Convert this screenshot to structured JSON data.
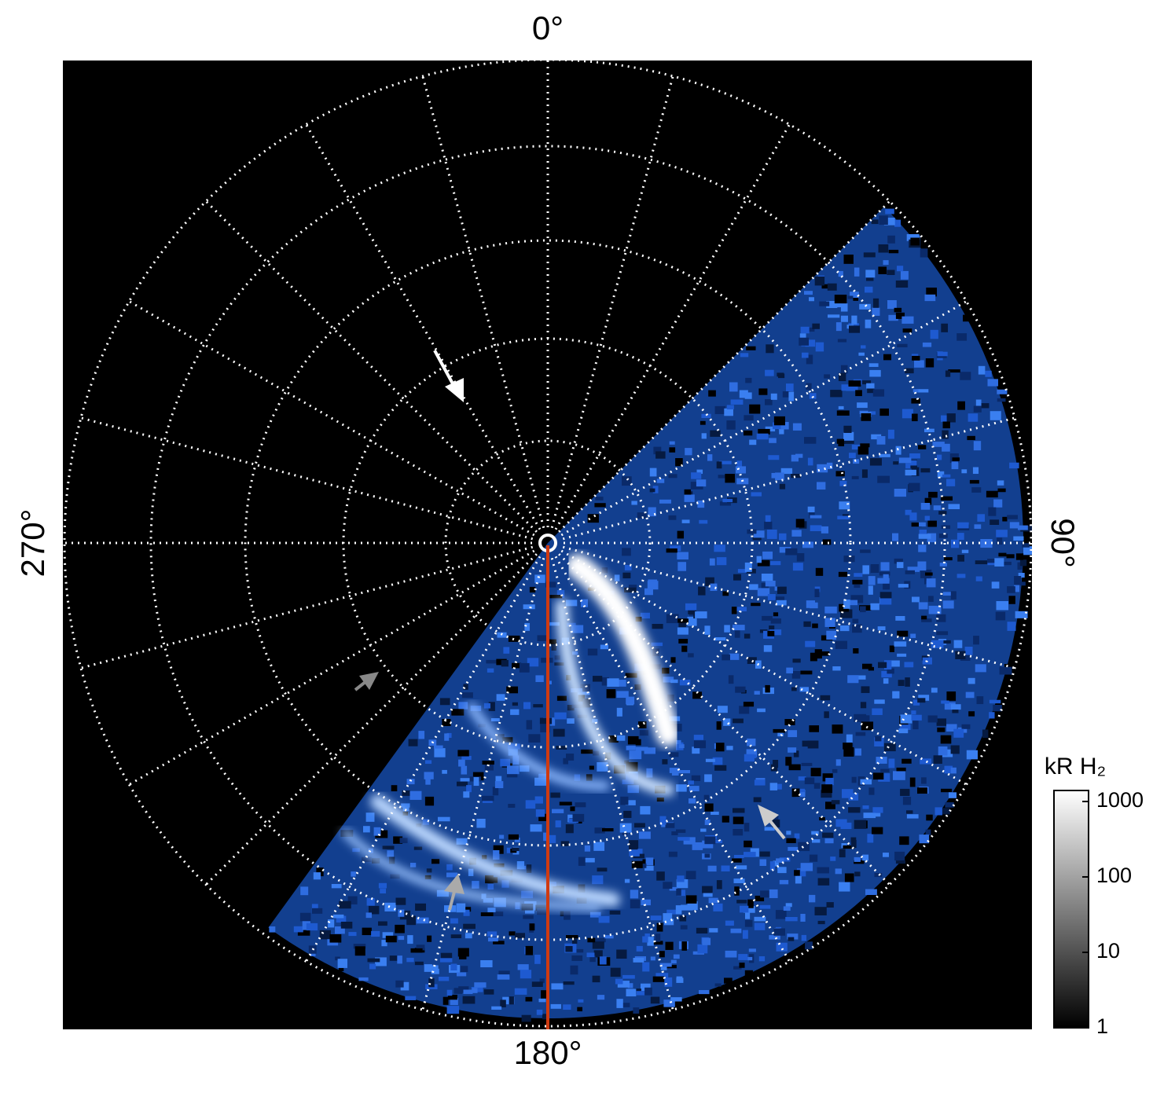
{
  "chart_data": {
    "type": "polar-image",
    "angle_ticks": [
      {
        "value": 0,
        "label": "0°"
      },
      {
        "value": 90,
        "label": "90°"
      },
      {
        "value": 180,
        "label": "180°"
      },
      {
        "value": 270,
        "label": "270°"
      }
    ],
    "colorbar": {
      "label": "kR H₂",
      "log": true,
      "lim": [
        1,
        1400
      ],
      "ticks": [
        1,
        10,
        100,
        1000
      ]
    }
  }
}
